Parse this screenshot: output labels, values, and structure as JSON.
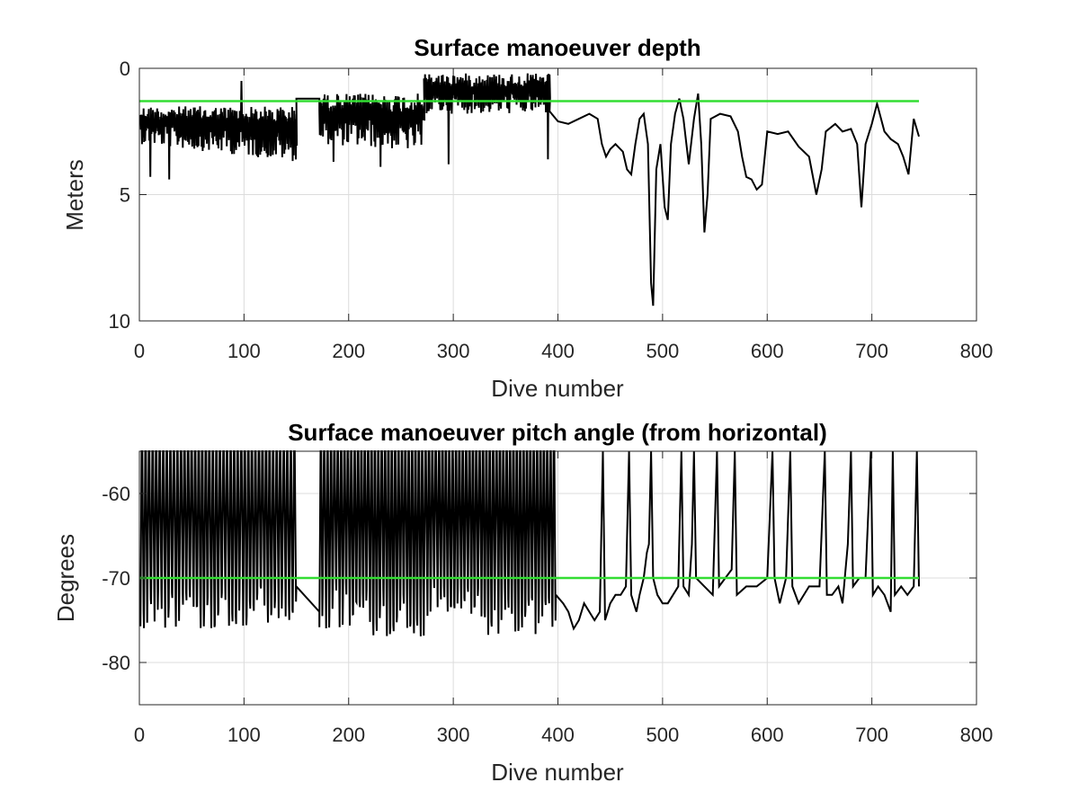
{
  "chart_data": [
    {
      "type": "line",
      "title": "Surface manoeuver depth",
      "xlabel": "Dive number",
      "ylabel": "Meters",
      "xlim": [
        0,
        800
      ],
      "ylim": [
        0,
        10
      ],
      "y_reversed": true,
      "grid": true,
      "xticks": [
        "0",
        "100",
        "200",
        "300",
        "400",
        "500",
        "600",
        "700",
        "800"
      ],
      "yticks": [
        "0",
        "5",
        "10"
      ],
      "reference_line": {
        "y": 1.3,
        "x_range": [
          0,
          745
        ],
        "color": "#33dd33"
      },
      "series": [
        {
          "color": "#000000",
          "kind": "noisy-envelope",
          "segments": [
            {
              "x": [
                1,
                150
              ],
              "low": [
                1.5,
                1.5
              ],
              "high": [
                3.0,
                3.7
              ],
              "spikes_low": [
                {
                  "x": 97,
                  "y": 0.5
                },
                {
                  "x": 10,
                  "y": 4.3
                },
                {
                  "x": 28,
                  "y": 4.4
                }
              ]
            },
            {
              "x": [
                150,
                172
              ],
              "path": [
                [
                  150,
                  1.2
                ],
                [
                  172,
                  1.2
                ]
              ]
            },
            {
              "x": [
                172,
                272
              ],
              "low": [
                1.0,
                1.0
              ],
              "high": [
                3.0,
                3.3
              ],
              "spikes_low": [
                {
                  "x": 185,
                  "y": 3.7
                },
                {
                  "x": 230,
                  "y": 3.9
                }
              ]
            },
            {
              "x": [
                272,
                392
              ],
              "low": [
                0.2,
                0.2
              ],
              "high": [
                1.8,
                1.8
              ],
              "spikes_low": [
                {
                  "x": 295,
                  "y": 3.8
                },
                {
                  "x": 390,
                  "y": 3.6
                }
              ]
            },
            {
              "x": [
                392,
                745
              ],
              "path": [
                [
                  392,
                  1.7
                ],
                [
                  400,
                  2.1
                ],
                [
                  410,
                  2.2
                ],
                [
                  420,
                  2.0
                ],
                [
                  430,
                  1.8
                ],
                [
                  438,
                  2.0
                ],
                [
                  442,
                  3.0
                ],
                [
                  446,
                  3.5
                ],
                [
                  450,
                  3.2
                ],
                [
                  455,
                  3.0
                ],
                [
                  462,
                  3.3
                ],
                [
                  466,
                  4.0
                ],
                [
                  470,
                  4.2
                ],
                [
                  474,
                  3.0
                ],
                [
                  478,
                  2.0
                ],
                [
                  482,
                  1.8
                ],
                [
                  486,
                  3.0
                ],
                [
                  489,
                  8.5
                ],
                [
                  491,
                  9.4
                ],
                [
                  494,
                  4.0
                ],
                [
                  498,
                  3.0
                ],
                [
                  502,
                  5.5
                ],
                [
                  505,
                  6.0
                ],
                [
                  508,
                  3.0
                ],
                [
                  512,
                  1.8
                ],
                [
                  516,
                  1.2
                ],
                [
                  520,
                  2.0
                ],
                [
                  525,
                  3.8
                ],
                [
                  530,
                  2.0
                ],
                [
                  534,
                  1.0
                ],
                [
                  537,
                  3.0
                ],
                [
                  540,
                  6.5
                ],
                [
                  543,
                  5.0
                ],
                [
                  546,
                  2.0
                ],
                [
                  555,
                  1.8
                ],
                [
                  565,
                  1.9
                ],
                [
                  572,
                  2.5
                ],
                [
                  576,
                  3.5
                ],
                [
                  580,
                  4.3
                ],
                [
                  585,
                  4.4
                ],
                [
                  590,
                  4.8
                ],
                [
                  595,
                  4.6
                ],
                [
                  600,
                  2.5
                ],
                [
                  610,
                  2.6
                ],
                [
                  620,
                  2.5
                ],
                [
                  630,
                  3.1
                ],
                [
                  640,
                  3.5
                ],
                [
                  647,
                  5.0
                ],
                [
                  652,
                  4.0
                ],
                [
                  656,
                  2.5
                ],
                [
                  665,
                  2.2
                ],
                [
                  672,
                  2.5
                ],
                [
                  680,
                  2.4
                ],
                [
                  686,
                  3.0
                ],
                [
                  690,
                  5.5
                ],
                [
                  694,
                  3.0
                ],
                [
                  700,
                  2.2
                ],
                [
                  705,
                  1.4
                ],
                [
                  712,
                  2.5
                ],
                [
                  718,
                  2.8
                ],
                [
                  725,
                  3.0
                ],
                [
                  730,
                  3.5
                ],
                [
                  735,
                  4.2
                ],
                [
                  740,
                  2.0
                ],
                [
                  745,
                  2.7
                ]
              ]
            }
          ]
        }
      ]
    },
    {
      "type": "line",
      "title": "Surface manoeuver pitch angle (from horizontal)",
      "xlabel": "Dive number",
      "ylabel": "Degrees",
      "xlim": [
        0,
        800
      ],
      "ylim": [
        -85,
        -55
      ],
      "grid": true,
      "xticks": [
        "0",
        "100",
        "200",
        "300",
        "400",
        "500",
        "600",
        "700",
        "800"
      ],
      "yticks": [
        "-60",
        "-70",
        "-80"
      ],
      "reference_line": {
        "y": -70,
        "x_range": [
          0,
          745
        ],
        "color": "#33dd33"
      },
      "series": [
        {
          "color": "#000000",
          "kind": "spike-train",
          "segments": [
            {
              "x": [
                1,
                150
              ],
              "top": -55,
              "bottom_range": [
                -76,
                -71
              ],
              "count": 44
            },
            {
              "x": [
                150,
                172
              ],
              "path": [
                [
                  150,
                  -71
                ],
                [
                  172,
                  -74
                ]
              ]
            },
            {
              "x": [
                172,
                398
              ],
              "top": -55,
              "bottom_range": [
                -77,
                -71
              ],
              "count": 70
            },
            {
              "x": [
                398,
                745
              ],
              "path": [
                [
                  398,
                  -72
                ],
                [
                  405,
                  -73
                ],
                [
                  410,
                  -74
                ],
                [
                  415,
                  -76
                ],
                [
                  420,
                  -75
                ],
                [
                  425,
                  -73
                ],
                [
                  430,
                  -74
                ],
                [
                  435,
                  -75
                ],
                [
                  440,
                  -74
                ],
                [
                  443,
                  -55
                ],
                [
                  445,
                  -75
                ],
                [
                  450,
                  -73
                ],
                [
                  455,
                  -72
                ],
                [
                  460,
                  -72
                ],
                [
                  465,
                  -71
                ],
                [
                  468,
                  -55
                ],
                [
                  470,
                  -72
                ],
                [
                  475,
                  -74
                ],
                [
                  478,
                  -72
                ],
                [
                  482,
                  -70
                ],
                [
                  485,
                  -67
                ],
                [
                  487,
                  -66
                ],
                [
                  489,
                  -55
                ],
                [
                  491,
                  -70
                ],
                [
                  495,
                  -72
                ],
                [
                  500,
                  -73
                ],
                [
                  505,
                  -73
                ],
                [
                  510,
                  -72
                ],
                [
                  515,
                  -71
                ],
                [
                  518,
                  -55
                ],
                [
                  520,
                  -71
                ],
                [
                  525,
                  -72
                ],
                [
                  528,
                  -66
                ],
                [
                  530,
                  -55
                ],
                [
                  532,
                  -70
                ],
                [
                  540,
                  -71
                ],
                [
                  548,
                  -72
                ],
                [
                  552,
                  -55
                ],
                [
                  554,
                  -71
                ],
                [
                  560,
                  -70
                ],
                [
                  566,
                  -69
                ],
                [
                  569,
                  -55
                ],
                [
                  571,
                  -72
                ],
                [
                  580,
                  -71
                ],
                [
                  590,
                  -71
                ],
                [
                  600,
                  -70
                ],
                [
                  605,
                  -55
                ],
                [
                  607,
                  -70
                ],
                [
                  612,
                  -73
                ],
                [
                  618,
                  -70
                ],
                [
                  622,
                  -55
                ],
                [
                  624,
                  -71
                ],
                [
                  630,
                  -73
                ],
                [
                  640,
                  -71
                ],
                [
                  650,
                  -71
                ],
                [
                  655,
                  -55
                ],
                [
                  657,
                  -72
                ],
                [
                  662,
                  -72
                ],
                [
                  668,
                  -71
                ],
                [
                  672,
                  -73
                ],
                [
                  677,
                  -66
                ],
                [
                  680,
                  -55
                ],
                [
                  682,
                  -71
                ],
                [
                  688,
                  -70
                ],
                [
                  694,
                  -70
                ],
                [
                  699,
                  -55
                ],
                [
                  701,
                  -72
                ],
                [
                  706,
                  -71
                ],
                [
                  712,
                  -72
                ],
                [
                  718,
                  -74
                ],
                [
                  720,
                  -55
                ],
                [
                  722,
                  -72
                ],
                [
                  728,
                  -71
                ],
                [
                  734,
                  -72
                ],
                [
                  740,
                  -71
                ],
                [
                  743,
                  -55
                ],
                [
                  745,
                  -71
                ]
              ]
            }
          ]
        }
      ]
    }
  ]
}
